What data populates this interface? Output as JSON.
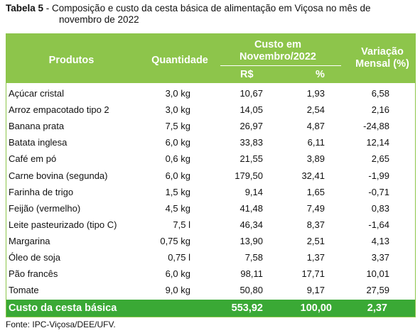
{
  "caption": {
    "label": "Tabela 5",
    "text": "- Composição e custo da cesta básica de alimentação em Viçosa no mês de novembro de 2022"
  },
  "table": {
    "headers": {
      "product": "Produtos",
      "quantity": "Quantidade",
      "cost": "Custo em Novembro/2022",
      "cost_rs": "R$",
      "cost_pct": "%",
      "variation": "Variação Mensal (%)"
    },
    "rows": [
      [
        "Açúcar cristal",
        "3,0 kg",
        "10,67",
        "1,93",
        "6,58"
      ],
      [
        "Arroz empacotado tipo 2",
        "3,0 kg",
        "14,05",
        "2,54",
        "2,16"
      ],
      [
        "Banana prata",
        "7,5 kg",
        "26,97",
        "4,87",
        "-24,88"
      ],
      [
        "Batata inglesa",
        "6,0 kg",
        "33,83",
        "6,11",
        "12,14"
      ],
      [
        "Café em pó",
        "0,6 kg",
        "21,55",
        "3,89",
        "2,65"
      ],
      [
        "Carne bovina (segunda)",
        "6,0 kg",
        "179,50",
        "32,41",
        "-1,99"
      ],
      [
        "Farinha de trigo",
        "1,5 kg",
        "9,14",
        "1,65",
        "-0,71"
      ],
      [
        "Feijão (vermelho)",
        "4,5 kg",
        "41,48",
        "7,49",
        "0,83"
      ],
      [
        "Leite pasteurizado (tipo C)",
        "7,5 l",
        "46,34",
        "8,37",
        "-1,64"
      ],
      [
        "Margarina",
        "0,75 kg",
        "13,90",
        "2,51",
        "4,13"
      ],
      [
        "Óleo de soja",
        "0,75 l",
        "7,58",
        "1,37",
        "3,37"
      ],
      [
        "Pão francês",
        "6,0 kg",
        "98,11",
        "17,71",
        "10,01"
      ],
      [
        "Tomate",
        "9,0 kg",
        "50,80",
        "9,17",
        "27,59"
      ]
    ],
    "total": {
      "label": "Custo da cesta básica",
      "rs": "553,92",
      "pct": "100,00",
      "variation": "2,37"
    }
  },
  "source": "Fonte: IPC-Viçosa/DEE/UFV."
}
